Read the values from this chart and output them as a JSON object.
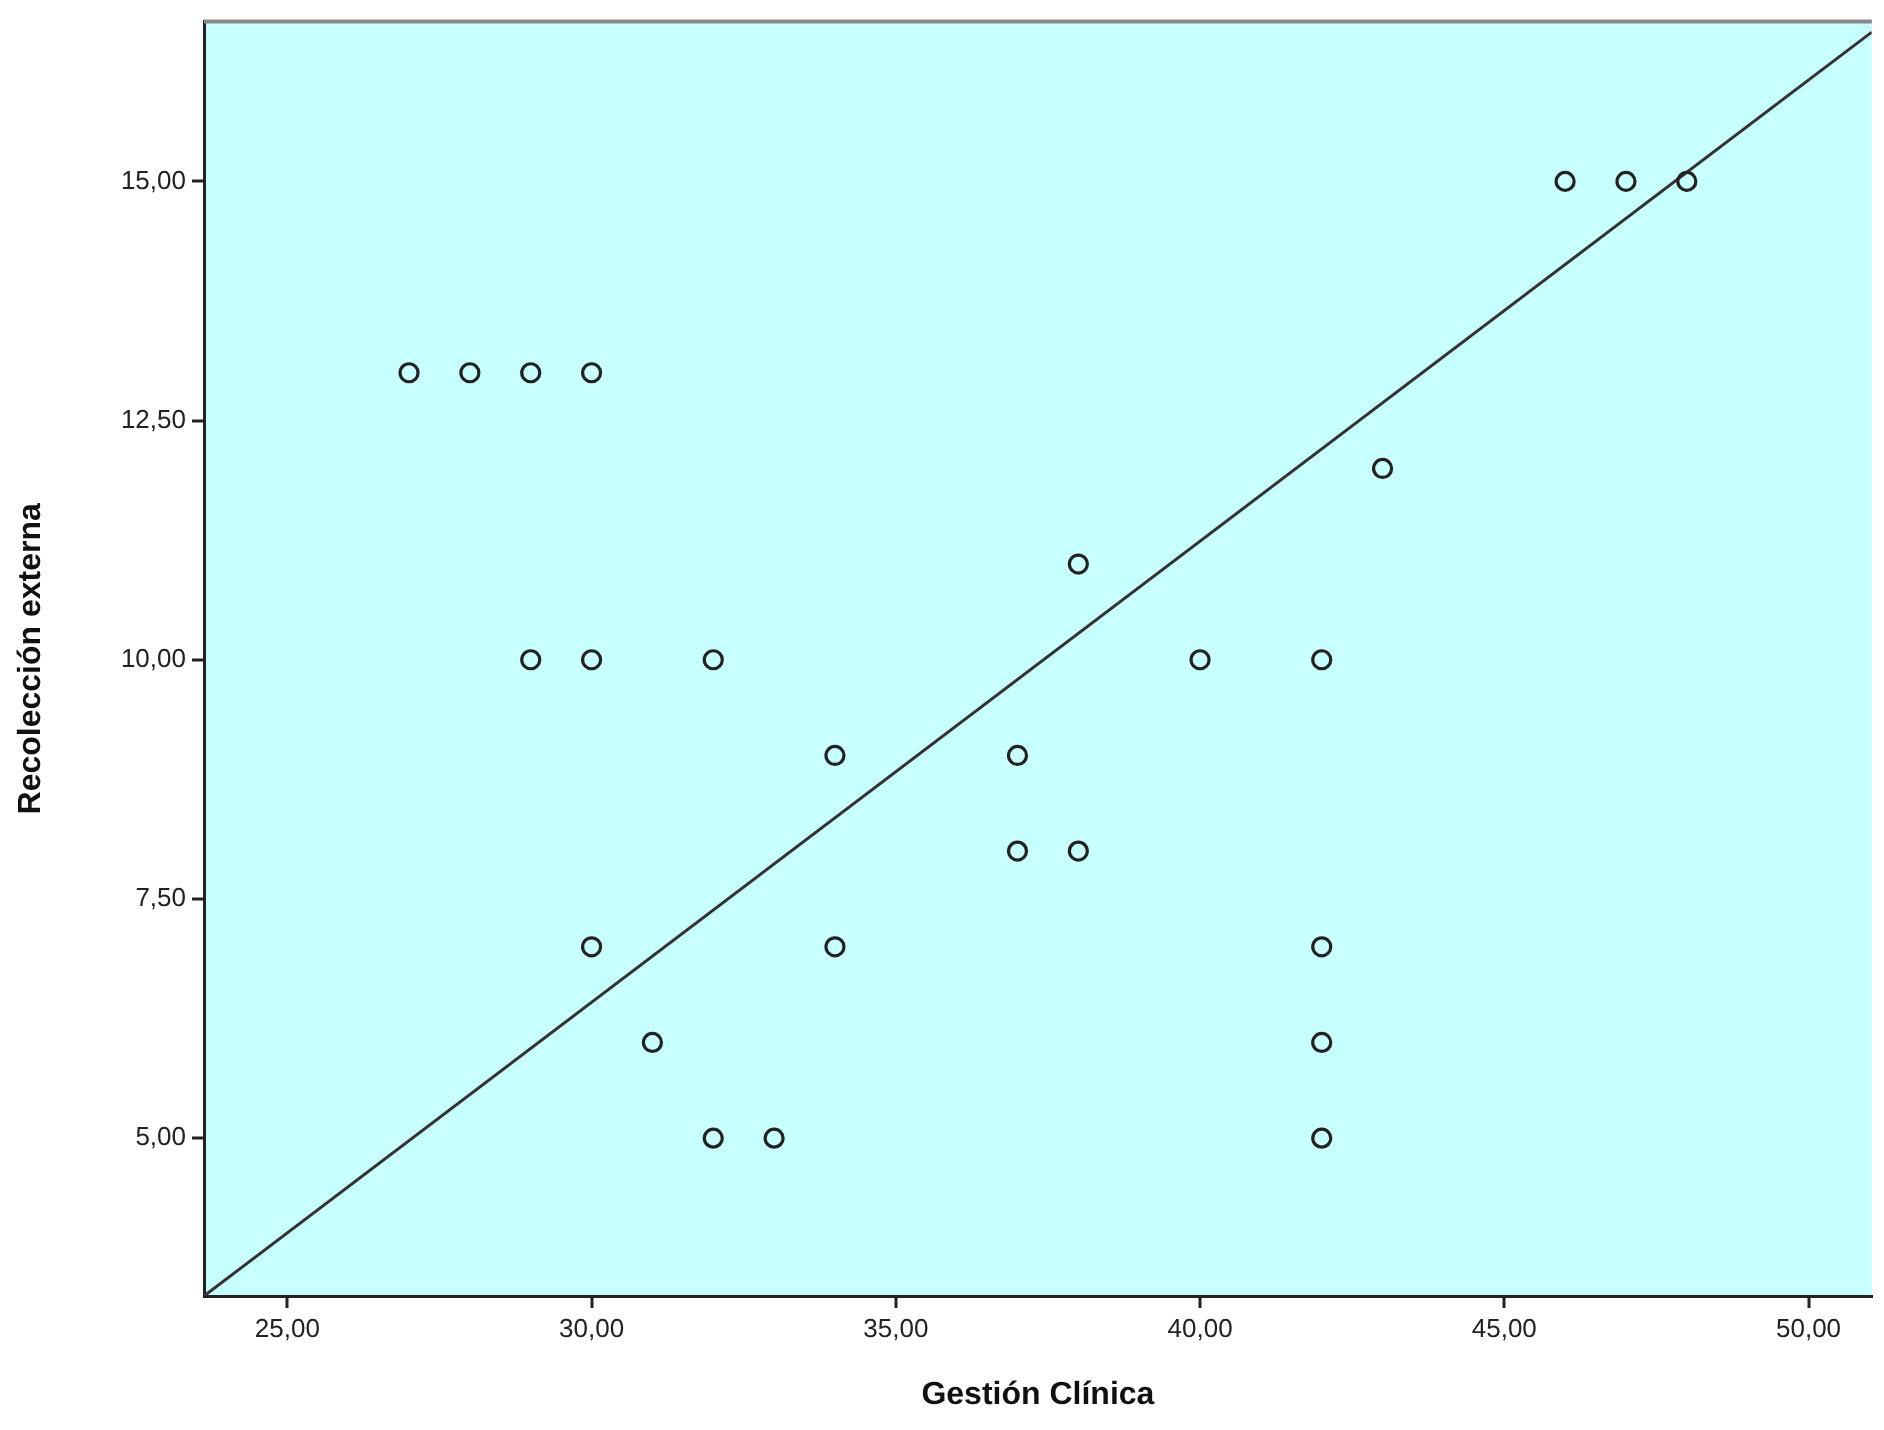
{
  "chart_data": {
    "type": "scatter",
    "xlabel": "Gestión Clínica",
    "ylabel": "Recolección externa",
    "xlim": [
      23.63,
      51.04
    ],
    "ylim": [
      3.35,
      16.67
    ],
    "xticks": [
      {
        "value": 25,
        "label": "25,00"
      },
      {
        "value": 30,
        "label": "30,00"
      },
      {
        "value": 35,
        "label": "35,00"
      },
      {
        "value": 40,
        "label": "40,00"
      },
      {
        "value": 45,
        "label": "45,00"
      },
      {
        "value": 50,
        "label": "50,00"
      }
    ],
    "yticks": [
      {
        "value": 5,
        "label": "5,00"
      },
      {
        "value": 7.5,
        "label": "7,50"
      },
      {
        "value": 10,
        "label": "10,00"
      },
      {
        "value": 12.5,
        "label": "12,50"
      },
      {
        "value": 15,
        "label": "15,00"
      }
    ],
    "grid": false,
    "legend": false,
    "marker": "circle",
    "series": [
      {
        "color": "#222222",
        "x": [
          27,
          28,
          29,
          30,
          29,
          30,
          32,
          30,
          31,
          32,
          33,
          34,
          34,
          37,
          37,
          38,
          38,
          40,
          42,
          42,
          42,
          42,
          43,
          46,
          47,
          48
        ],
        "values": [
          13,
          13,
          13,
          13,
          10,
          10,
          10,
          7,
          6,
          5,
          5,
          9,
          7,
          9,
          8,
          8,
          11,
          10,
          10,
          7,
          6,
          5,
          12,
          15,
          15,
          15
        ]
      },
      {
        "type": "line",
        "color": "#333333",
        "marker": "none",
        "line_style": "solid",
        "x": [
          23.63,
          51.04
        ],
        "values": [
          3.35,
          16.56
        ]
      }
    ]
  }
}
